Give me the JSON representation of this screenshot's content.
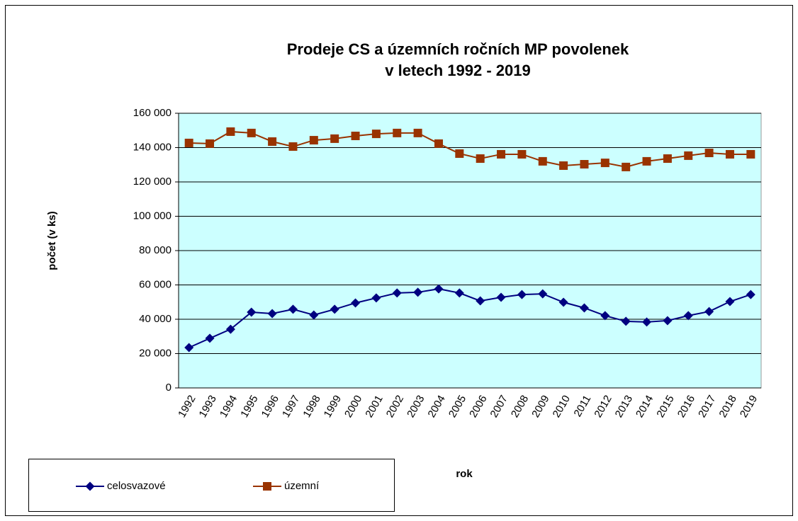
{
  "chart_data": {
    "type": "line",
    "title": [
      "Prodeje CS a územních ročních MP povolenek",
      "v letech 1992 - 2019"
    ],
    "xlabel": "rok",
    "ylabel": "počet (v ks)",
    "categories": [
      "1992",
      "1993",
      "1994",
      "1995",
      "1996",
      "1997",
      "1998",
      "1999",
      "2000",
      "2001",
      "2002",
      "2003",
      "2004",
      "2005",
      "2006",
      "2007",
      "2008",
      "2009",
      "2010",
      "2011",
      "2012",
      "2013",
      "2014",
      "2015",
      "2016",
      "2017",
      "2018",
      "2019"
    ],
    "series": [
      {
        "name": "celosvazové",
        "color": "#000080",
        "marker": "diamond",
        "values": [
          23500,
          28900,
          34200,
          44100,
          43300,
          45800,
          42500,
          45800,
          49500,
          52400,
          55300,
          55700,
          57700,
          55300,
          50700,
          52800,
          54400,
          54800,
          49900,
          46600,
          42100,
          38800,
          38400,
          39200,
          42100,
          44500,
          50300,
          54400
        ]
      },
      {
        "name": "územní",
        "color": "#993300",
        "marker": "square",
        "values": [
          142700,
          142300,
          149300,
          148500,
          143500,
          140600,
          144300,
          145200,
          146800,
          148000,
          148500,
          148500,
          142300,
          136500,
          133600,
          136100,
          136100,
          132000,
          129500,
          130300,
          131100,
          128700,
          132000,
          133600,
          135300,
          136900,
          136100,
          136100
        ]
      }
    ],
    "ylim": [
      0,
      160000
    ],
    "yticks": [
      0,
      {
        "value": 20000,
        "label": "20 000"
      },
      {
        "value": 40000,
        "label": "40 000"
      },
      {
        "value": 60000,
        "label": "60 000"
      },
      {
        "value": 80000,
        "label": "80 000"
      },
      {
        "value": 100000,
        "label": "100 000"
      },
      {
        "value": 120000,
        "label": "120 000"
      },
      {
        "value": 140000,
        "label": "140 000"
      },
      {
        "value": 160000,
        "label": "160 000"
      }
    ],
    "grid": true,
    "legend": "bottom-left"
  }
}
